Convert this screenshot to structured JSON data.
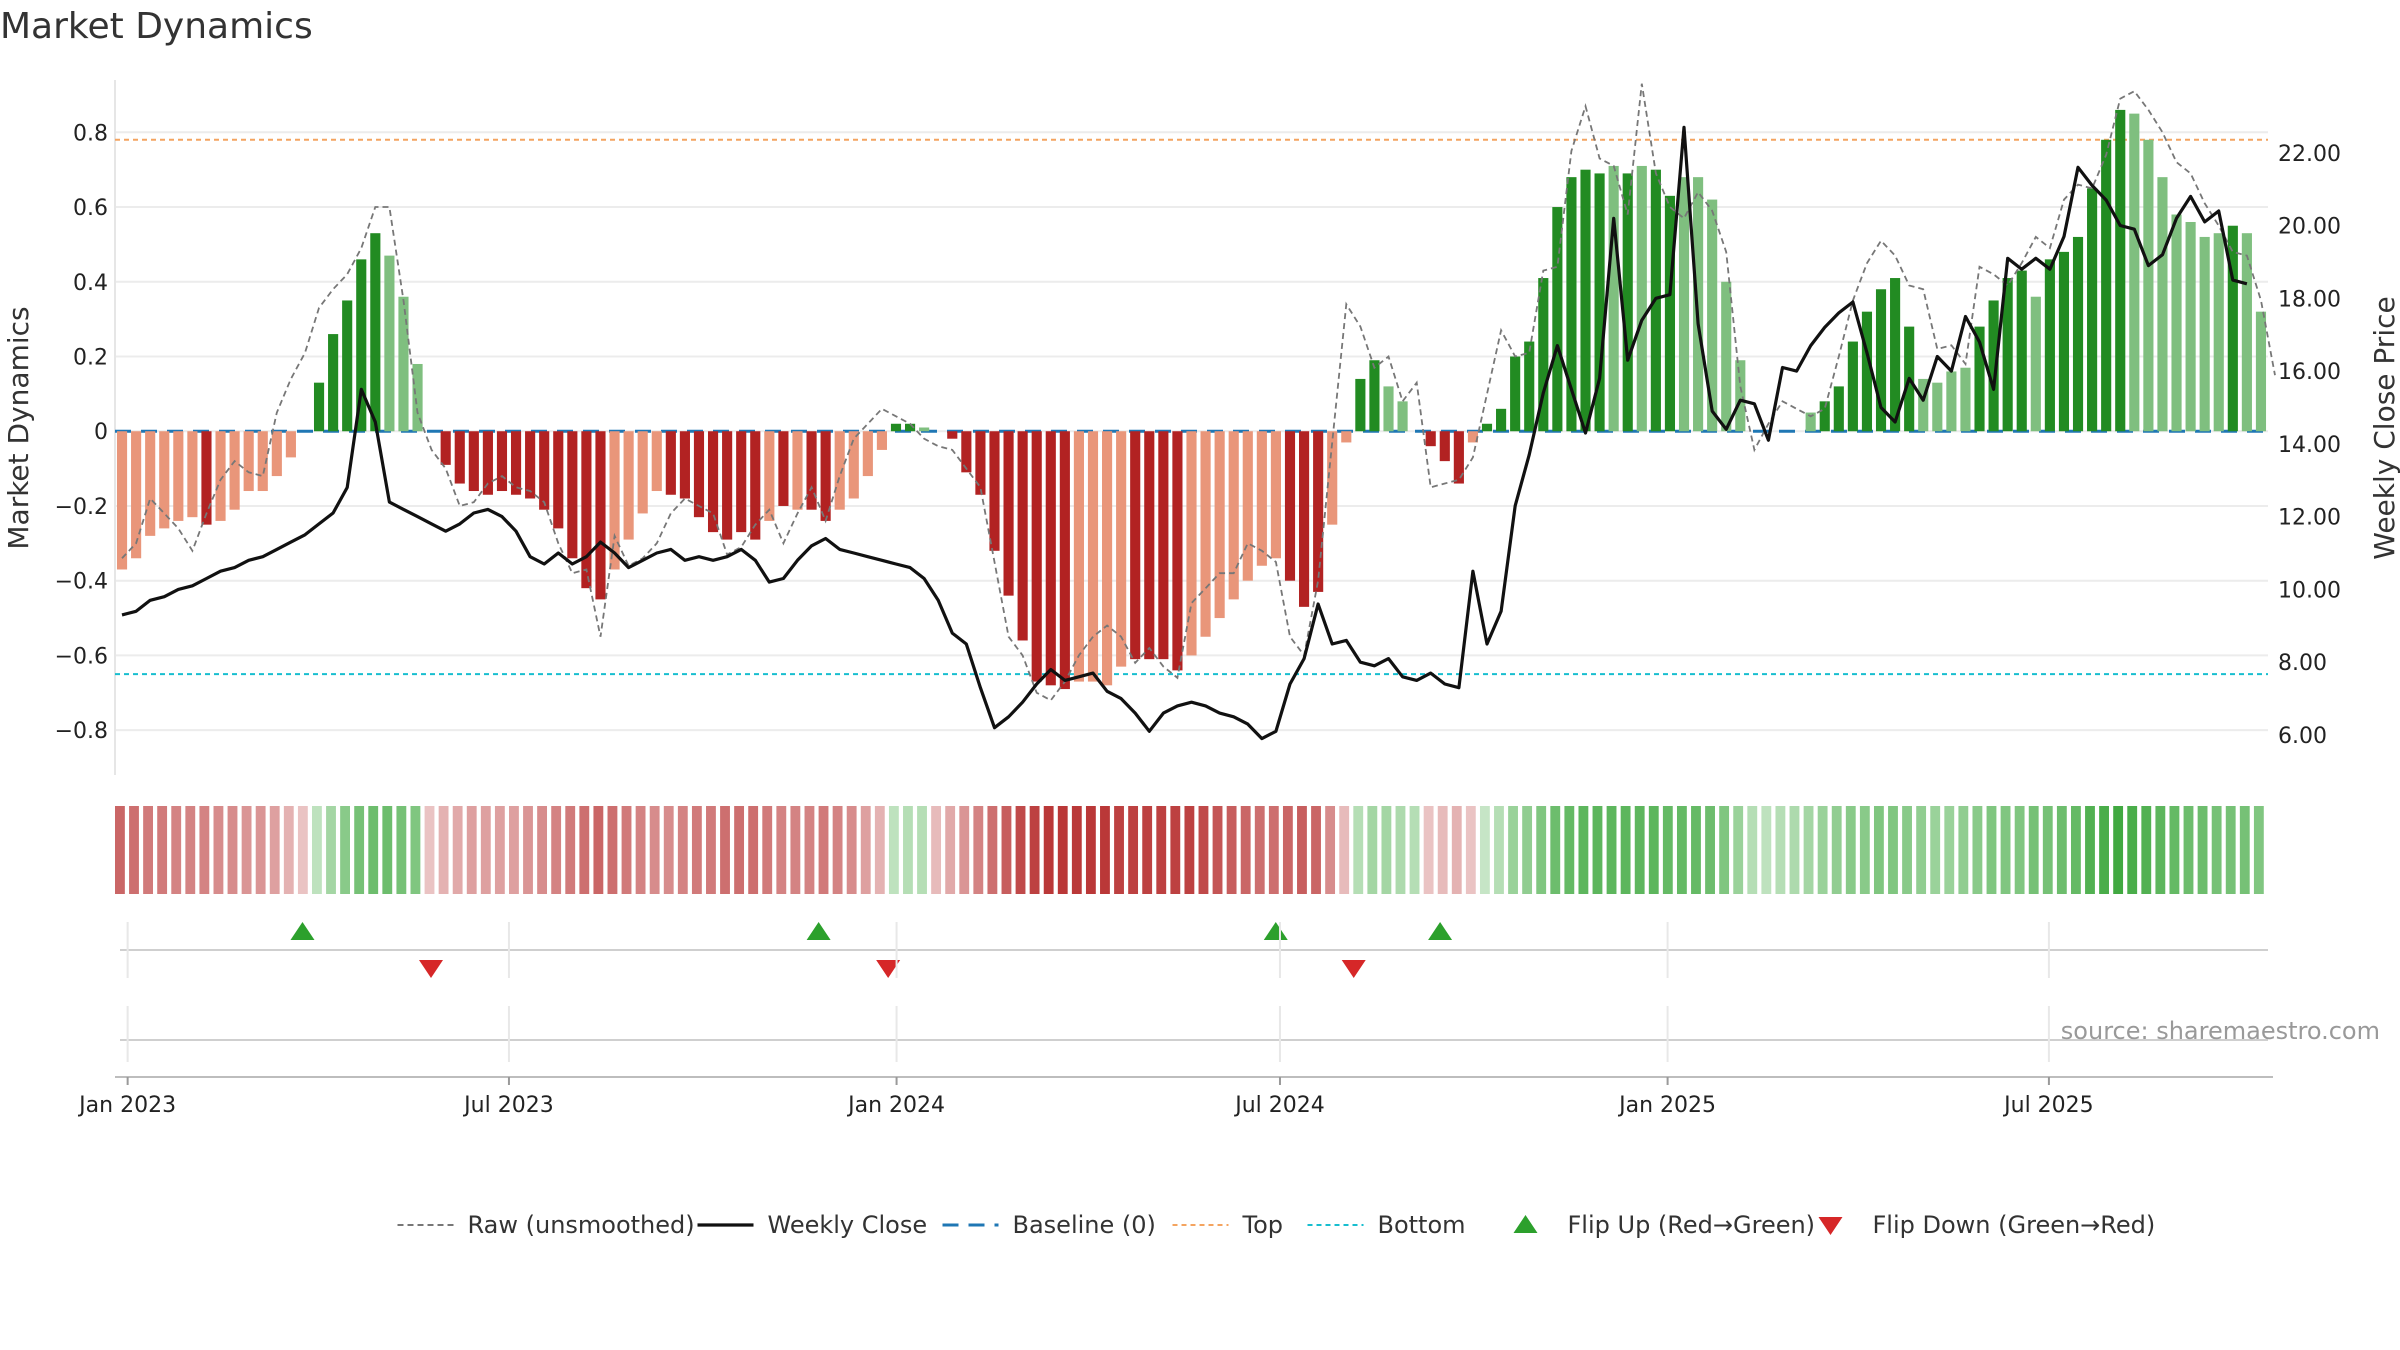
{
  "title": "Market Dynamics",
  "source": "source: sharemaestro.com",
  "chart_data": {
    "type": "bar",
    "title": "Market Dynamics",
    "ylabel_left": "Market Dynamics",
    "ylabel_right": "Weekly Close Price",
    "ylim_left": [
      -0.92,
      0.94
    ],
    "ylim_right": [
      4.9,
      24.0
    ],
    "yticks_left": [
      0.8,
      0.6,
      0.4,
      0.2,
      0,
      -0.2,
      -0.4,
      -0.6,
      -0.8
    ],
    "ytick_labels_left": [
      "0.8",
      "0.6",
      "0.4",
      "0.2",
      "0",
      "−0.2",
      "−0.4",
      "−0.6",
      "−0.8"
    ],
    "yticks_right": [
      22,
      20,
      18,
      16,
      14,
      12,
      10,
      8,
      6
    ],
    "ytick_labels_right": [
      "22.00",
      "20.00",
      "18.00",
      "16.00",
      "14.00",
      "12.00",
      "10.00",
      "8.00",
      "6.00"
    ],
    "x_start": "2022-12-26",
    "x_end": "2025-10-13",
    "x_ticks": [
      "2023-01-01",
      "2023-07-01",
      "2024-01-01",
      "2024-07-01",
      "2025-01-01",
      "2025-07-01"
    ],
    "x_tick_labels": [
      "Jan 2023",
      "Jul 2023",
      "Jan 2024",
      "Jul 2024",
      "Jan 2025",
      "Jul 2025"
    ],
    "reference_lines": {
      "top": 0.78,
      "bottom": -0.65,
      "baseline": 0
    },
    "colors": {
      "strong_green": "#228b22",
      "light_green": "#7fbf7f",
      "strong_red": "#b22222",
      "light_red": "#e9967a",
      "close": "#111111",
      "raw": "#777777",
      "baseline": "#1f77b4",
      "top": "#f4a460",
      "bottom": "#17becf",
      "flip_up": "#2ca02c",
      "flip_down": "#d62728"
    },
    "series": [
      {
        "name": "Market Dynamics",
        "values": [
          -0.37,
          -0.34,
          -0.28,
          -0.26,
          -0.24,
          -0.23,
          -0.25,
          -0.24,
          -0.21,
          -0.16,
          -0.16,
          -0.12,
          -0.07,
          0,
          0.13,
          0.26,
          0.35,
          0.46,
          0.53,
          0.47,
          0.36,
          0.18,
          0,
          -0.09,
          -0.14,
          -0.16,
          -0.17,
          -0.16,
          -0.17,
          -0.18,
          -0.21,
          -0.26,
          -0.34,
          -0.42,
          -0.45,
          -0.37,
          -0.29,
          -0.22,
          -0.16,
          -0.17,
          -0.18,
          -0.23,
          -0.27,
          -0.29,
          -0.27,
          -0.29,
          -0.24,
          -0.2,
          -0.21,
          -0.21,
          -0.24,
          -0.21,
          -0.18,
          -0.12,
          -0.05,
          0.02,
          0.02,
          0.01,
          0,
          -0.02,
          -0.11,
          -0.17,
          -0.32,
          -0.44,
          -0.56,
          -0.67,
          -0.68,
          -0.69,
          -0.67,
          -0.67,
          -0.68,
          -0.63,
          -0.61,
          -0.61,
          -0.61,
          -0.64,
          -0.6,
          -0.55,
          -0.5,
          -0.45,
          -0.4,
          -0.36,
          -0.34,
          -0.4,
          -0.47,
          -0.43,
          -0.25,
          -0.03,
          0.14,
          0.19,
          0.12,
          0.08,
          0,
          -0.04,
          -0.08,
          -0.14,
          -0.03,
          0.02,
          0.06,
          0.2,
          0.24,
          0.41,
          0.6,
          0.68,
          0.7,
          0.69,
          0.71,
          0.69,
          0.71,
          0.7,
          0.63,
          0.68,
          0.68,
          0.62,
          0.4,
          0.19,
          0,
          0,
          0,
          0,
          0.05,
          0.08,
          0.12,
          0.24,
          0.32,
          0.38,
          0.41,
          0.28,
          0.14,
          0.13,
          0.16,
          0.17,
          0.28,
          0.35,
          0.41,
          0.43,
          0.36,
          0.46,
          0.48,
          0.52,
          0.65,
          0.78,
          0.86,
          0.85,
          0.78,
          0.68,
          0.58,
          0.56,
          0.52,
          0.53,
          0.55,
          0.53,
          0.32
        ],
        "shade": [
          "L",
          "L",
          "L",
          "L",
          "L",
          "L",
          "S",
          "L",
          "L",
          "L",
          "L",
          "L",
          "L",
          "",
          "S",
          "S",
          "S",
          "S",
          "S",
          "L",
          "L",
          "L",
          "",
          "S",
          "S",
          "S",
          "S",
          "S",
          "S",
          "S",
          "S",
          "S",
          "S",
          "S",
          "S",
          "L",
          "L",
          "L",
          "L",
          "S",
          "S",
          "S",
          "S",
          "S",
          "S",
          "S",
          "L",
          "S",
          "L",
          "S",
          "S",
          "L",
          "L",
          "L",
          "L",
          "S",
          "S",
          "L",
          "",
          "S",
          "S",
          "S",
          "S",
          "S",
          "S",
          "S",
          "S",
          "S",
          "L",
          "L",
          "L",
          "L",
          "S",
          "S",
          "S",
          "S",
          "L",
          "L",
          "L",
          "L",
          "L",
          "L",
          "L",
          "S",
          "S",
          "S",
          "L",
          "L",
          "S",
          "S",
          "L",
          "L",
          "",
          "S",
          "S",
          "S",
          "L",
          "S",
          "S",
          "S",
          "S",
          "S",
          "S",
          "S",
          "S",
          "S",
          "L",
          "S",
          "L",
          "S",
          "S",
          "L",
          "L",
          "L",
          "L",
          "L",
          "L",
          "",
          "",
          "",
          "",
          "S",
          "S",
          "S",
          "S",
          "S",
          "S",
          "S",
          "L",
          "L",
          "L",
          "L",
          "S",
          "S",
          "S",
          "S",
          "L",
          "S",
          "S",
          "S",
          "S",
          "S",
          "S",
          "L",
          "L",
          "L",
          "L",
          "L",
          "L",
          "L",
          "S",
          "L",
          "L"
        ]
      },
      {
        "name": "Raw (unsmoothed)",
        "values": [
          -0.34,
          -0.3,
          -0.18,
          -0.22,
          -0.26,
          -0.32,
          -0.22,
          -0.13,
          -0.08,
          -0.11,
          -0.12,
          0.05,
          0.14,
          0.21,
          0.33,
          0.38,
          0.42,
          0.49,
          0.6,
          0.6,
          0.35,
          0.05,
          -0.05,
          -0.1,
          -0.2,
          -0.19,
          -0.14,
          -0.12,
          -0.15,
          -0.16,
          -0.19,
          -0.3,
          -0.38,
          -0.37,
          -0.55,
          -0.28,
          -0.36,
          -0.34,
          -0.3,
          -0.22,
          -0.18,
          -0.2,
          -0.22,
          -0.33,
          -0.31,
          -0.25,
          -0.21,
          -0.3,
          -0.22,
          -0.15,
          -0.24,
          -0.12,
          -0.02,
          0.02,
          0.06,
          0.04,
          0.02,
          -0.02,
          -0.04,
          -0.05,
          -0.1,
          -0.15,
          -0.35,
          -0.55,
          -0.6,
          -0.7,
          -0.72,
          -0.67,
          -0.6,
          -0.55,
          -0.52,
          -0.55,
          -0.62,
          -0.58,
          -0.63,
          -0.66,
          -0.46,
          -0.42,
          -0.38,
          -0.38,
          -0.3,
          -0.32,
          -0.35,
          -0.55,
          -0.6,
          -0.4,
          -0.03,
          0.34,
          0.28,
          0.17,
          0.2,
          0.08,
          0.13,
          -0.15,
          -0.14,
          -0.13,
          -0.07,
          0.1,
          0.27,
          0.2,
          0.21,
          0.43,
          0.44,
          0.75,
          0.87,
          0.73,
          0.71,
          0.58,
          0.93,
          0.69,
          0.6,
          0.57,
          0.64,
          0.59,
          0.48,
          0.12,
          -0.05,
          0.02,
          0.08,
          0.06,
          0.04,
          0.06,
          0.2,
          0.35,
          0.45,
          0.51,
          0.47,
          0.39,
          0.38,
          0.22,
          0.23,
          0.18,
          0.44,
          0.42,
          0.39,
          0.45,
          0.52,
          0.49,
          0.62,
          0.66,
          0.65,
          0.74,
          0.89,
          0.91,
          0.86,
          0.8,
          0.72,
          0.69,
          0.61,
          0.55,
          0.48,
          0.47,
          0.35,
          0.15
        ]
      },
      {
        "name": "Weekly Close",
        "values": [
          9.3,
          9.4,
          9.7,
          9.8,
          10.0,
          10.1,
          10.3,
          10.5,
          10.6,
          10.8,
          10.9,
          11.1,
          11.3,
          11.5,
          11.8,
          12.1,
          12.8,
          15.5,
          14.6,
          12.4,
          12.2,
          12.0,
          11.8,
          11.6,
          11.8,
          12.1,
          12.2,
          12.0,
          11.6,
          10.9,
          10.7,
          11.0,
          10.7,
          10.9,
          11.3,
          11.0,
          10.6,
          10.8,
          11.0,
          11.1,
          10.8,
          10.9,
          10.8,
          10.9,
          11.1,
          10.8,
          10.2,
          10.3,
          10.8,
          11.2,
          11.4,
          11.1,
          11.0,
          10.9,
          10.8,
          10.7,
          10.6,
          10.3,
          9.7,
          8.8,
          8.5,
          7.3,
          6.2,
          6.5,
          6.9,
          7.4,
          7.8,
          7.5,
          7.6,
          7.7,
          7.2,
          7.0,
          6.6,
          6.1,
          6.6,
          6.8,
          6.9,
          6.8,
          6.6,
          6.5,
          6.3,
          5.9,
          6.1,
          7.4,
          8.1,
          9.6,
          8.5,
          8.6,
          8.0,
          7.9,
          8.1,
          7.6,
          7.5,
          7.7,
          7.4,
          7.3,
          10.5,
          8.5,
          9.4,
          12.3,
          13.7,
          15.4,
          16.7,
          15.5,
          14.3,
          15.8,
          20.2,
          16.3,
          17.4,
          18.0,
          18.1,
          22.7,
          17.3,
          14.9,
          14.4,
          15.2,
          15.1,
          14.1,
          16.1,
          16.0,
          16.7,
          17.2,
          17.6,
          17.9,
          16.5,
          15.0,
          14.6,
          15.8,
          15.2,
          16.4,
          16.0,
          17.5,
          16.8,
          15.5,
          19.1,
          18.8,
          19.1,
          18.8,
          19.7,
          21.6,
          21.1,
          20.7,
          20.0,
          19.9,
          18.9,
          19.2,
          20.2,
          20.8,
          20.1,
          20.4,
          18.5,
          18.4
        ]
      }
    ],
    "regime_strip": {
      "comment": "second panel: colored band per week, signed intensity (+green / -red)",
      "values": [
        -0.6,
        -0.55,
        -0.5,
        -0.5,
        -0.45,
        -0.45,
        -0.45,
        -0.4,
        -0.4,
        -0.35,
        -0.35,
        -0.3,
        -0.2,
        -0.1,
        0.15,
        0.3,
        0.45,
        0.55,
        0.6,
        0.6,
        0.55,
        0.5,
        -0.1,
        -0.2,
        -0.25,
        -0.3,
        -0.3,
        -0.3,
        -0.3,
        -0.35,
        -0.4,
        -0.45,
        -0.5,
        -0.55,
        -0.6,
        -0.55,
        -0.5,
        -0.45,
        -0.4,
        -0.4,
        -0.45,
        -0.5,
        -0.5,
        -0.55,
        -0.55,
        -0.55,
        -0.5,
        -0.45,
        -0.45,
        -0.45,
        -0.5,
        -0.45,
        -0.4,
        -0.3,
        -0.2,
        0.15,
        0.2,
        0.2,
        -0.15,
        -0.25,
        -0.35,
        -0.45,
        -0.55,
        -0.65,
        -0.75,
        -0.8,
        -0.85,
        -0.85,
        -0.85,
        -0.85,
        -0.85,
        -0.8,
        -0.8,
        -0.8,
        -0.8,
        -0.8,
        -0.8,
        -0.75,
        -0.7,
        -0.65,
        -0.6,
        -0.55,
        -0.55,
        -0.6,
        -0.65,
        -0.6,
        -0.4,
        -0.15,
        0.2,
        0.3,
        0.3,
        0.25,
        0.2,
        -0.1,
        -0.15,
        -0.2,
        -0.1,
        0.1,
        0.2,
        0.35,
        0.4,
        0.5,
        0.6,
        0.65,
        0.7,
        0.7,
        0.7,
        0.7,
        0.7,
        0.7,
        0.65,
        0.65,
        0.65,
        0.6,
        0.5,
        0.35,
        0.2,
        0.15,
        0.2,
        0.25,
        0.3,
        0.35,
        0.4,
        0.45,
        0.45,
        0.5,
        0.5,
        0.45,
        0.4,
        0.35,
        0.35,
        0.4,
        0.45,
        0.5,
        0.5,
        0.5,
        0.55,
        0.55,
        0.6,
        0.65,
        0.75,
        0.8,
        0.85,
        0.8,
        0.75,
        0.7,
        0.65,
        0.6,
        0.6,
        0.55,
        0.55,
        0.55,
        0.5
      ],
      "gap_after_index": 61
    },
    "flips_up": [
      "2023-03-25",
      "2023-11-25",
      "2024-06-29",
      "2024-09-15"
    ],
    "flips_down": [
      "2023-05-25",
      "2023-12-28",
      "2024-08-05"
    ],
    "legend": [
      {
        "label": "Raw (unsmoothed)",
        "kind": "raw"
      },
      {
        "label": "Weekly Close",
        "kind": "close"
      },
      {
        "label": "Baseline (0)",
        "kind": "baseline"
      },
      {
        "label": "Top",
        "kind": "top"
      },
      {
        "label": "Bottom",
        "kind": "bottom"
      },
      {
        "label": "Flip Up (Red→Green)",
        "kind": "flip_up"
      },
      {
        "label": "Flip Down (Green→Red)",
        "kind": "flip_down"
      }
    ],
    "legend_position": "bottom-center",
    "grid": true
  }
}
